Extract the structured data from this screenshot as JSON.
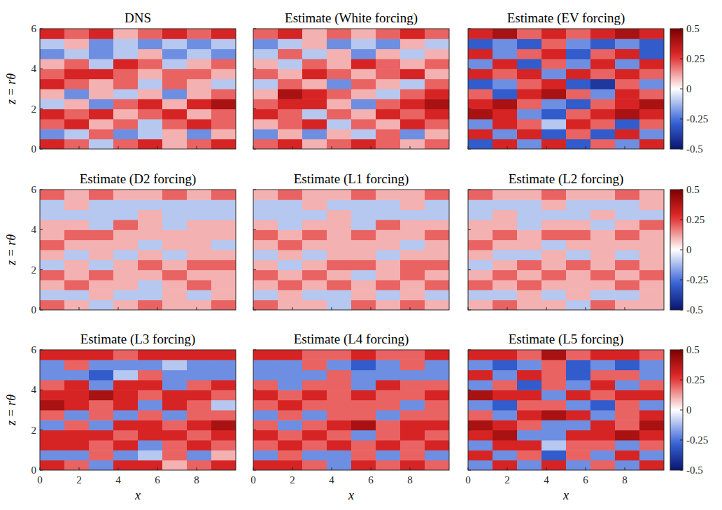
{
  "chart_data": [
    {
      "type": "heatmap",
      "title": "DNS",
      "y_label": "z = rθ",
      "xlim": [
        0,
        10
      ],
      "ylim": [
        0,
        6
      ],
      "xticks": [
        0,
        2,
        4,
        6,
        8
      ],
      "yticks": [
        0,
        2,
        4,
        6
      ],
      "tick_labels": "y",
      "cells": [
        [
          0.3,
          0.2,
          -0.1,
          0.2,
          0.3,
          0.1,
          0.2,
          0.3
        ],
        [
          -0.2,
          -0.1,
          0.2,
          -0.2,
          -0.1,
          0.1,
          -0.2,
          0.1
        ],
        [
          0.2,
          0.3,
          0.1,
          0.2,
          -0.1,
          0.2,
          0.3,
          0.2
        ],
        [
          0.3,
          0.2,
          0.3,
          0.1,
          0.2,
          0.3,
          0.1,
          0.2
        ],
        [
          -0.1,
          0.1,
          -0.2,
          0.2,
          0.3,
          0.1,
          0.3,
          0.4
        ],
        [
          0.1,
          -0.2,
          0.1,
          -0.1,
          0.1,
          -0.2,
          0.1,
          0.2
        ],
        [
          0.3,
          0.2,
          0.1,
          0.2,
          -0.1,
          0.2,
          0.1,
          -0.1
        ],
        [
          0.2,
          0.3,
          0.3,
          0.2,
          0.1,
          0.2,
          0.2,
          0.1
        ],
        [
          0.1,
          0.2,
          -0.1,
          0.3,
          0.2,
          -0.1,
          0.1,
          0.2
        ],
        [
          -0.2,
          -0.1,
          -0.2,
          -0.1,
          0.1,
          -0.2,
          -0.1,
          -0.2
        ],
        [
          -0.1,
          0.1,
          -0.2,
          -0.1,
          -0.2,
          -0.1,
          -0.2,
          -0.1
        ],
        [
          0.3,
          0.2,
          0.3,
          0.1,
          0.2,
          0.3,
          0.2,
          0.3
        ]
      ]
    },
    {
      "type": "heatmap",
      "title": "Estimate (White forcing)",
      "xlim": [
        0,
        10
      ],
      "ylim": [
        0,
        6
      ],
      "xticks": [
        0,
        2,
        4,
        6,
        8
      ],
      "yticks": [
        0,
        2,
        4,
        6
      ],
      "tick_labels": false,
      "cells": [
        [
          0.2,
          0.3,
          0.1,
          0.2,
          0.3,
          0.2,
          0.1,
          0.2
        ],
        [
          -0.2,
          0.1,
          -0.2,
          0.1,
          -0.1,
          0.2,
          -0.2,
          0.1
        ],
        [
          0.1,
          0.2,
          0.3,
          -0.1,
          0.2,
          0.1,
          0.3,
          0.2
        ],
        [
          0.3,
          0.2,
          -0.1,
          0.2,
          0.1,
          0.3,
          0.2,
          0.3
        ],
        [
          0.2,
          0.3,
          0.3,
          0.1,
          -0.2,
          0.2,
          0.3,
          0.4
        ],
        [
          0.1,
          0.4,
          0.3,
          0.2,
          0.1,
          -0.1,
          0.2,
          0.3
        ],
        [
          -0.1,
          0.2,
          0.1,
          -0.2,
          0.2,
          0.1,
          -0.1,
          0.2
        ],
        [
          0.2,
          0.1,
          0.3,
          0.2,
          0.1,
          0.2,
          0.3,
          0.1
        ],
        [
          0.1,
          -0.1,
          0.2,
          0.1,
          0.3,
          0.2,
          0.1,
          0.2
        ],
        [
          -0.1,
          0.2,
          -0.1,
          0.1,
          -0.2,
          0.1,
          -0.1,
          0.1
        ],
        [
          -0.2,
          -0.1,
          0.1,
          -0.2,
          -0.1,
          -0.2,
          0.1,
          -0.1
        ],
        [
          0.2,
          0.3,
          0.1,
          0.2,
          0.1,
          0.2,
          0.3,
          0.2
        ]
      ]
    },
    {
      "type": "heatmap",
      "title": "Estimate (EV forcing)",
      "xlim": [
        0,
        10
      ],
      "ylim": [
        0,
        6
      ],
      "xticks": [
        0,
        2,
        4,
        6,
        8
      ],
      "yticks": [
        0,
        2,
        4,
        6
      ],
      "tick_labels": false,
      "colorbar": {
        "range": [
          -0.5,
          0.5
        ],
        "ticks": [
          -0.5,
          -0.25,
          0,
          0.25,
          0.5
        ]
      },
      "cells": [
        [
          -0.3,
          0.3,
          -0.2,
          0.3,
          -0.3,
          0.2,
          -0.2,
          0.3
        ],
        [
          0.3,
          -0.2,
          0.3,
          -0.3,
          0.2,
          -0.3,
          0.3,
          -0.2
        ],
        [
          -0.2,
          0.3,
          0.2,
          -0.1,
          0.3,
          0.2,
          -0.3,
          0.2
        ],
        [
          0.4,
          0.3,
          -0.2,
          -0.3,
          0.2,
          0.3,
          0.4,
          0.3
        ],
        [
          0.3,
          0.4,
          0.2,
          -0.2,
          -0.3,
          0.2,
          0.3,
          0.4
        ],
        [
          0.2,
          -0.3,
          0.3,
          0.4,
          0.2,
          -0.2,
          0.3,
          0.2
        ],
        [
          -0.3,
          -0.2,
          0.2,
          0.3,
          -0.3,
          -0.4,
          0.2,
          -0.2
        ],
        [
          0.3,
          0.2,
          0.3,
          -0.2,
          0.3,
          0.2,
          0.3,
          0.2
        ],
        [
          -0.2,
          0.3,
          -0.3,
          0.2,
          -0.2,
          0.3,
          -0.2,
          0.3
        ],
        [
          0.3,
          -0.2,
          0.2,
          0.3,
          -0.3,
          0.2,
          0.3,
          -0.3
        ],
        [
          -0.3,
          -0.2,
          -0.3,
          0.2,
          -0.2,
          -0.3,
          -0.2,
          -0.3
        ],
        [
          0.3,
          0.4,
          0.2,
          0.3,
          0.2,
          0.3,
          0.4,
          0.3
        ]
      ]
    },
    {
      "type": "heatmap",
      "title": "Estimate (D2 forcing)",
      "y_label": "z = rθ",
      "xlim": [
        0,
        10
      ],
      "ylim": [
        0,
        6
      ],
      "xticks": [
        0,
        2,
        4,
        6,
        8
      ],
      "yticks": [
        0,
        2,
        4,
        6
      ],
      "tick_labels": "y",
      "cells": [
        [
          0.2,
          0.1,
          -0.1,
          0.1,
          0.2,
          0.1,
          0.1,
          0.2
        ],
        [
          -0.1,
          -0.1,
          0.1,
          -0.1,
          -0.1,
          0.1,
          -0.1,
          0.1
        ],
        [
          0.1,
          0.2,
          0.1,
          0.1,
          -0.1,
          0.1,
          0.2,
          0.1
        ],
        [
          0.2,
          0.1,
          0.2,
          0.1,
          0.1,
          0.2,
          0.1,
          0.1
        ],
        [
          -0.1,
          0.1,
          -0.1,
          0.1,
          0.2,
          0.1,
          0.2,
          0.2
        ],
        [
          0.1,
          -0.1,
          0.1,
          -0.1,
          0.1,
          -0.1,
          0.1,
          0.1
        ],
        [
          0.2,
          0.1,
          0.1,
          0.1,
          -0.1,
          0.1,
          0.1,
          -0.1
        ],
        [
          0.1,
          0.2,
          0.2,
          0.1,
          0.1,
          0.1,
          0.1,
          0.1
        ],
        [
          0.1,
          0.1,
          -0.1,
          0.2,
          0.1,
          -0.1,
          0.1,
          0.1
        ],
        [
          -0.1,
          -0.1,
          -0.1,
          -0.1,
          0.1,
          -0.1,
          -0.1,
          -0.1
        ],
        [
          -0.1,
          0.1,
          -0.1,
          -0.1,
          -0.1,
          -0.1,
          -0.1,
          -0.1
        ],
        [
          0.2,
          0.1,
          0.2,
          0.1,
          0.1,
          0.2,
          0.1,
          0.2
        ]
      ]
    },
    {
      "type": "heatmap",
      "title": "Estimate (L1 forcing)",
      "xlim": [
        0,
        10
      ],
      "ylim": [
        0,
        6
      ],
      "xticks": [
        0,
        2,
        4,
        6,
        8
      ],
      "yticks": [
        0,
        2,
        4,
        6
      ],
      "tick_labels": false,
      "cells": [
        [
          0.2,
          0.1,
          0.1,
          -0.1,
          0.2,
          0.1,
          0.2,
          0.1
        ],
        [
          -0.1,
          0.1,
          -0.1,
          -0.1,
          0.1,
          -0.1,
          0.1,
          -0.1
        ],
        [
          0.1,
          0.2,
          0.1,
          0.2,
          0.1,
          0.2,
          0.1,
          0.2
        ],
        [
          0.2,
          0.1,
          0.2,
          0.1,
          -0.1,
          0.1,
          0.2,
          0.1
        ],
        [
          0.1,
          -0.1,
          0.1,
          0.2,
          0.2,
          0.1,
          0.2,
          0.2
        ],
        [
          -0.1,
          0.1,
          -0.1,
          0.1,
          0.1,
          -0.1,
          0.1,
          0.1
        ],
        [
          0.1,
          0.2,
          0.1,
          0.1,
          0.1,
          0.1,
          -0.1,
          0.1
        ],
        [
          0.2,
          0.1,
          0.2,
          0.1,
          0.2,
          0.1,
          0.1,
          0.2
        ],
        [
          0.1,
          -0.1,
          0.1,
          0.1,
          -0.1,
          0.2,
          0.1,
          0.1
        ],
        [
          -0.1,
          -0.1,
          -0.1,
          0.1,
          -0.1,
          -0.1,
          -0.1,
          -0.1
        ],
        [
          -0.1,
          -0.1,
          0.1,
          -0.1,
          -0.1,
          -0.1,
          0.1,
          -0.1
        ],
        [
          0.1,
          0.2,
          0.1,
          0.1,
          0.2,
          0.1,
          0.1,
          0.2
        ]
      ]
    },
    {
      "type": "heatmap",
      "title": "Estimate (L2 forcing)",
      "xlim": [
        0,
        10
      ],
      "ylim": [
        0,
        6
      ],
      "xticks": [
        0,
        2,
        4,
        6,
        8
      ],
      "yticks": [
        0,
        2,
        4,
        6
      ],
      "tick_labels": false,
      "colorbar": {
        "range": [
          -0.5,
          0.5
        ],
        "ticks": [
          -0.5,
          -0.25,
          0,
          0.25,
          0.5
        ]
      },
      "cells": [
        [
          0.1,
          0.2,
          0.1,
          0.1,
          -0.1,
          0.2,
          0.1,
          0.1
        ],
        [
          -0.1,
          -0.1,
          0.1,
          -0.1,
          0.1,
          -0.1,
          -0.1,
          0.1
        ],
        [
          0.2,
          0.1,
          0.2,
          0.1,
          0.1,
          0.1,
          0.2,
          0.1
        ],
        [
          0.1,
          0.2,
          0.1,
          0.2,
          0.1,
          0.2,
          0.1,
          0.2
        ],
        [
          -0.1,
          0.1,
          0.2,
          0.1,
          0.2,
          0.1,
          0.2,
          0.1
        ],
        [
          0.1,
          -0.1,
          -0.1,
          0.1,
          -0.1,
          0.1,
          -0.1,
          0.1
        ],
        [
          0.2,
          0.1,
          0.1,
          -0.1,
          0.1,
          0.1,
          0.1,
          0.1
        ],
        [
          0.1,
          0.2,
          0.1,
          0.2,
          0.2,
          0.1,
          0.2,
          0.1
        ],
        [
          0.1,
          0.1,
          -0.1,
          0.1,
          0.1,
          -0.1,
          0.1,
          0.2
        ],
        [
          -0.1,
          0.1,
          -0.1,
          -0.1,
          -0.1,
          0.1,
          -0.1,
          -0.1
        ],
        [
          -0.1,
          -0.1,
          -0.1,
          0.1,
          -0.1,
          -0.1,
          -0.1,
          0.1
        ],
        [
          0.2,
          0.1,
          0.1,
          0.2,
          0.1,
          0.1,
          0.2,
          0.1
        ]
      ]
    },
    {
      "type": "heatmap",
      "title": "Estimate (L3 forcing)",
      "x_label": "x",
      "y_label": "z = rθ",
      "xlim": [
        0,
        10
      ],
      "ylim": [
        0,
        6
      ],
      "xticks": [
        0,
        2,
        4,
        6,
        8
      ],
      "yticks": [
        0,
        2,
        4,
        6
      ],
      "tick_labels": true,
      "cells": [
        [
          0.3,
          0.2,
          -0.2,
          0.3,
          0.3,
          0.1,
          0.2,
          0.3
        ],
        [
          -0.2,
          -0.2,
          0.2,
          -0.2,
          -0.1,
          0.2,
          -0.2,
          0.1
        ],
        [
          0.3,
          0.3,
          0.2,
          0.3,
          -0.2,
          0.2,
          0.3,
          0.2
        ],
        [
          0.3,
          0.3,
          0.3,
          0.2,
          0.3,
          0.3,
          0.2,
          0.3
        ],
        [
          -0.2,
          0.2,
          -0.2,
          0.3,
          0.3,
          0.2,
          0.3,
          0.4
        ],
        [
          0.2,
          -0.2,
          0.2,
          -0.2,
          0.2,
          -0.2,
          0.2,
          0.2
        ],
        [
          0.4,
          0.3,
          0.2,
          0.3,
          -0.2,
          0.3,
          0.2,
          -0.1
        ],
        [
          0.3,
          0.3,
          0.4,
          0.3,
          0.2,
          0.3,
          0.3,
          0.2
        ],
        [
          0.2,
          0.3,
          -0.2,
          0.3,
          0.3,
          -0.2,
          0.2,
          0.3
        ],
        [
          -0.2,
          -0.2,
          -0.3,
          -0.1,
          0.2,
          -0.2,
          -0.2,
          -0.2
        ],
        [
          -0.2,
          0.2,
          -0.2,
          -0.2,
          -0.2,
          -0.1,
          -0.2,
          -0.2
        ],
        [
          0.3,
          0.3,
          0.3,
          0.2,
          0.3,
          0.3,
          0.3,
          0.3
        ]
      ]
    },
    {
      "type": "heatmap",
      "title": "Estimate (L4 forcing)",
      "x_label": "x",
      "xlim": [
        0,
        10
      ],
      "ylim": [
        0,
        6
      ],
      "xticks": [
        0,
        2,
        4,
        6,
        8
      ],
      "yticks": [
        0,
        2,
        4,
        6
      ],
      "tick_labels": "x",
      "cells": [
        [
          0.3,
          0.3,
          0.2,
          -0.2,
          0.3,
          0.2,
          0.3,
          0.2
        ],
        [
          -0.2,
          0.2,
          -0.2,
          -0.2,
          0.2,
          -0.2,
          0.2,
          -0.2
        ],
        [
          0.2,
          0.3,
          0.2,
          0.3,
          0.2,
          0.3,
          0.2,
          0.3
        ],
        [
          0.3,
          0.2,
          0.3,
          0.2,
          -0.2,
          0.2,
          0.3,
          0.2
        ],
        [
          0.2,
          -0.2,
          0.2,
          0.3,
          0.4,
          0.2,
          0.3,
          0.3
        ],
        [
          -0.2,
          0.2,
          -0.2,
          0.2,
          0.2,
          -0.2,
          0.2,
          0.2
        ],
        [
          0.2,
          0.3,
          0.2,
          0.2,
          0.2,
          0.2,
          -0.2,
          0.2
        ],
        [
          0.3,
          0.2,
          0.3,
          0.2,
          0.3,
          0.2,
          0.2,
          0.3
        ],
        [
          0.2,
          -0.2,
          0.2,
          0.2,
          -0.2,
          0.3,
          0.2,
          0.2
        ],
        [
          -0.2,
          -0.2,
          -0.2,
          0.2,
          -0.2,
          -0.2,
          -0.2,
          -0.2
        ],
        [
          -0.2,
          -0.2,
          0.2,
          -0.2,
          -0.3,
          -0.2,
          0.2,
          -0.2
        ],
        [
          0.3,
          0.3,
          0.2,
          0.2,
          0.3,
          0.2,
          0.2,
          0.3
        ]
      ]
    },
    {
      "type": "heatmap",
      "title": "Estimate (L5 forcing)",
      "x_label": "x",
      "xlim": [
        0,
        10
      ],
      "ylim": [
        0,
        6
      ],
      "xticks": [
        0,
        2,
        4,
        6,
        8
      ],
      "yticks": [
        0,
        2,
        4,
        6
      ],
      "tick_labels": "x",
      "colorbar": {
        "range": [
          -0.5,
          0.5
        ],
        "ticks": [
          -0.5,
          -0.25,
          0,
          0.25,
          0.5
        ]
      },
      "cells": [
        [
          -0.2,
          0.3,
          -0.2,
          0.3,
          -0.2,
          0.2,
          -0.2,
          0.3
        ],
        [
          0.3,
          -0.2,
          0.2,
          -0.3,
          0.2,
          -0.2,
          0.3,
          -0.2
        ],
        [
          -0.2,
          0.3,
          0.3,
          -0.1,
          0.2,
          0.2,
          -0.2,
          0.2
        ],
        [
          0.3,
          0.4,
          -0.2,
          -0.2,
          0.3,
          0.3,
          0.4,
          0.3
        ],
        [
          0.4,
          0.3,
          0.2,
          -0.2,
          -0.2,
          0.3,
          0.2,
          0.4
        ],
        [
          0.2,
          -0.2,
          0.3,
          0.4,
          0.3,
          -0.2,
          0.2,
          0.3
        ],
        [
          -0.2,
          -0.3,
          0.2,
          0.2,
          -0.2,
          -0.3,
          0.2,
          -0.2
        ],
        [
          0.4,
          0.3,
          0.3,
          -0.2,
          0.3,
          0.2,
          0.3,
          0.3
        ],
        [
          -0.2,
          0.2,
          -0.3,
          0.2,
          -0.2,
          0.3,
          -0.2,
          0.2
        ],
        [
          0.3,
          -0.2,
          0.3,
          0.2,
          -0.3,
          0.2,
          0.2,
          -0.2
        ],
        [
          -0.2,
          -0.3,
          -0.2,
          0.2,
          -0.3,
          -0.2,
          -0.3,
          -0.2
        ],
        [
          0.3,
          0.3,
          0.2,
          0.4,
          0.2,
          0.3,
          0.3,
          0.2
        ]
      ]
    }
  ]
}
